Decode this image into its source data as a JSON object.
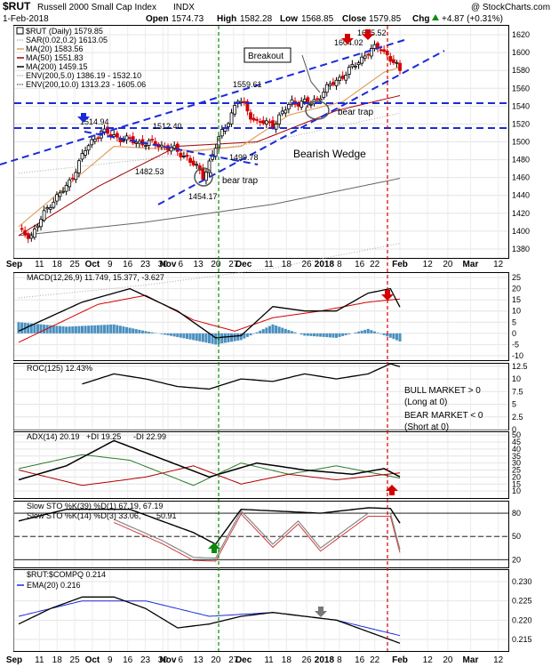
{
  "header": {
    "symbol": "$RUT",
    "name": "Russell 2000 Small Cap Index",
    "exchange": "INDX",
    "source": "@ StockCharts.com",
    "date": "1-Feb-2018",
    "open_label": "Open",
    "open": "1574.73",
    "high_label": "High",
    "high": "1582.28",
    "low_label": "Low",
    "low": "1568.85",
    "close_label": "Close",
    "close": "1579.85",
    "chg_label": "Chg",
    "chg": "+4.87 (+0.31%)",
    "chg_icon": "up-triangle-icon"
  },
  "colors": {
    "up": "#000000",
    "down": "#d40000",
    "ma20": "#e0a060",
    "ma50": "#a00000",
    "ma200": "#000000",
    "trend": "#1a2bd8",
    "vline_green": "#0a8a0a",
    "vline_red": "#d40000",
    "histogram": "#4a90c0",
    "ema": "#1a2bd8",
    "plus_di": "#2a7a2a",
    "minus_di": "#b00000",
    "slow_d": "#d04040"
  },
  "price_panel": {
    "legend": [
      {
        "text": "$RUT (Daily) 1579.85",
        "color": "#000000",
        "icon": "square-outline-icon"
      },
      {
        "text": "SAR(0.02,0.2) 1613.05",
        "color": "#888888",
        "icon": "dotted-line-icon"
      },
      {
        "text": "MA(20) 1583.56",
        "color": "#e0a060",
        "icon": "line-icon"
      },
      {
        "text": "MA(50) 1551.83",
        "color": "#a00000",
        "icon": "line-icon"
      },
      {
        "text": "MA(200) 1459.15",
        "color": "#000000",
        "icon": "line-icon"
      },
      {
        "text": "ENV(200,5.0) 1386.19 - 1532.10",
        "color": "#888888",
        "icon": "dotted-line-icon"
      },
      {
        "text": "ENV(200,10.0) 1313.23 - 1605.06",
        "color": "#000000",
        "icon": "dotted-line-icon"
      }
    ],
    "annotations": {
      "breakout": "Breakout",
      "bear_trap_1": "bear trap",
      "bear_trap_2": "bear trap",
      "bearish_wedge": "Bearish Wedge"
    },
    "price_labels": [
      "1514.94",
      "1512.40",
      "1482.53",
      "1499.78",
      "1454.17",
      "1559.61",
      "1604.02",
      "1615.52"
    ]
  },
  "x_axis": {
    "labels": [
      "Sep",
      "11",
      "18",
      "25",
      "Oct",
      "9",
      "16",
      "23",
      "30",
      "Nov",
      "6",
      "13",
      "20",
      "27",
      "Dec",
      "11",
      "18",
      "26",
      "2018",
      "8",
      "16",
      "22",
      "Feb",
      "12",
      "20",
      "Mar",
      "12"
    ]
  },
  "panels": {
    "macd": {
      "label": "MACD(12,26,9) 11.749, 15.377, -3.627"
    },
    "roc": {
      "label": "ROC(125) 12.43%",
      "bull": [
        "BULL MARKET > 0",
        "(Long at 0)"
      ],
      "bear": [
        "BEAR MARKET < 0",
        "(Short at 0)"
      ]
    },
    "adx": {
      "label_adx": "ADX(14) 20.19",
      "label_pdi": "+DI 19.25",
      "label_mdi": "-DI 22.99"
    },
    "sto": {
      "label1": "Slow STO %K(39) %D(1) 67.19, 67.19",
      "label2_a": "Slow STO %K(14) %D(3) 33.06,",
      "label2_b": "50.91"
    },
    "ratio": {
      "label": "$RUT:$COMPQ 0.214",
      "ema_label": "EMA(20) 0.216"
    }
  },
  "chart_data": [
    {
      "type": "candlestick",
      "title": "$RUT Russell 2000 Small Cap Index INDX (Daily)",
      "y_ticks": [
        1380,
        1400,
        1420,
        1440,
        1460,
        1480,
        1500,
        1520,
        1540,
        1560,
        1580,
        1600,
        1620
      ],
      "ylim": [
        1370,
        1630
      ],
      "x_range": [
        "2017-09-01",
        "2018-03-16"
      ],
      "key_points": [
        {
          "date": "2017-09-01",
          "close": 1401
        },
        {
          "date": "2017-09-08",
          "close": 1395
        },
        {
          "date": "2017-09-15",
          "close": 1430
        },
        {
          "date": "2017-09-22",
          "close": 1450
        },
        {
          "date": "2017-09-29",
          "close": 1490
        },
        {
          "date": "2017-10-05",
          "close": 1512
        },
        {
          "date": "2017-10-12",
          "close": 1505
        },
        {
          "date": "2017-10-19",
          "close": 1500
        },
        {
          "date": "2017-10-26",
          "close": 1498
        },
        {
          "date": "2017-11-02",
          "close": 1493
        },
        {
          "date": "2017-11-09",
          "close": 1482
        },
        {
          "date": "2017-11-15",
          "close": 1461
        },
        {
          "date": "2017-11-21",
          "close": 1502
        },
        {
          "date": "2017-11-29",
          "close": 1548
        },
        {
          "date": "2017-12-06",
          "close": 1522
        },
        {
          "date": "2017-12-13",
          "close": 1520
        },
        {
          "date": "2017-12-20",
          "close": 1545
        },
        {
          "date": "2017-12-28",
          "close": 1543
        },
        {
          "date": "2018-01-05",
          "close": 1565
        },
        {
          "date": "2018-01-12",
          "close": 1580
        },
        {
          "date": "2018-01-19",
          "close": 1600
        },
        {
          "date": "2018-01-24",
          "close": 1607
        },
        {
          "date": "2018-01-29",
          "close": 1590
        },
        {
          "date": "2018-02-01",
          "close": 1579.85
        }
      ],
      "ma20": [
        [
          0,
          1405
        ],
        [
          30,
          1495
        ],
        [
          55,
          1490
        ],
        [
          70,
          1495
        ],
        [
          85,
          1530
        ],
        [
          102,
          1545
        ],
        [
          115,
          1578
        ],
        [
          120,
          1583.56
        ]
      ],
      "ma50": [
        [
          0,
          1395
        ],
        [
          25,
          1450
        ],
        [
          50,
          1495
        ],
        [
          75,
          1500
        ],
        [
          100,
          1535
        ],
        [
          120,
          1551.83
        ]
      ],
      "ma200": [
        [
          0,
          1395
        ],
        [
          40,
          1410
        ],
        [
          80,
          1430
        ],
        [
          120,
          1459.15
        ]
      ]
    },
    {
      "type": "line",
      "title": "MACD(12,26,9) 11.749, 15.377, -3.627",
      "y_ticks": [
        -10,
        -5,
        0,
        5,
        10,
        15,
        20,
        25
      ],
      "ylim": [
        -12,
        27
      ],
      "series": [
        {
          "name": "MACD",
          "values": [
            [
              0,
              1
            ],
            [
              20,
              14
            ],
            [
              35,
              20
            ],
            [
              50,
              10
            ],
            [
              62,
              -2
            ],
            [
              70,
              -1
            ],
            [
              80,
              12
            ],
            [
              90,
              10
            ],
            [
              100,
              10
            ],
            [
              110,
              18
            ],
            [
              117,
              20
            ],
            [
              120,
              11.749
            ]
          ]
        },
        {
          "name": "Signal",
          "values": [
            [
              0,
              -4
            ],
            [
              25,
              13
            ],
            [
              40,
              17
            ],
            [
              55,
              6
            ],
            [
              68,
              1
            ],
            [
              80,
              7
            ],
            [
              95,
              10
            ],
            [
              110,
              14
            ],
            [
              120,
              15.377
            ]
          ]
        }
      ],
      "histogram": [
        [
          0,
          5
        ],
        [
          15,
          3
        ],
        [
          30,
          4
        ],
        [
          40,
          1
        ],
        [
          55,
          -3
        ],
        [
          62,
          -5
        ],
        [
          70,
          -3
        ],
        [
          80,
          4
        ],
        [
          90,
          -1
        ],
        [
          100,
          -2
        ],
        [
          110,
          2
        ],
        [
          120,
          -3.627
        ]
      ]
    },
    {
      "type": "line",
      "title": "ROC(125) 12.43%",
      "y_ticks": [
        0,
        2.5,
        5,
        7.5,
        10,
        12.5
      ],
      "ylim": [
        0,
        13
      ],
      "series": [
        {
          "name": "ROC(125)",
          "values": [
            [
              20,
              9
            ],
            [
              30,
              11
            ],
            [
              40,
              10
            ],
            [
              50,
              8.5
            ],
            [
              60,
              8
            ],
            [
              70,
              10
            ],
            [
              80,
              9.5
            ],
            [
              90,
              11
            ],
            [
              100,
              10
            ],
            [
              110,
              11
            ],
            [
              117,
              13
            ],
            [
              120,
              12.43
            ]
          ]
        }
      ]
    },
    {
      "type": "line",
      "title": "ADX(14) 20.19 +DI 19.25 -DI 22.99",
      "y_ticks": [
        10,
        15,
        20,
        25,
        30,
        35,
        40,
        45,
        50
      ],
      "ylim": [
        5,
        52
      ],
      "series": [
        {
          "name": "ADX(14)",
          "values": [
            [
              0,
              18
            ],
            [
              15,
              28
            ],
            [
              30,
              46
            ],
            [
              45,
              33
            ],
            [
              60,
              20
            ],
            [
              75,
              30
            ],
            [
              90,
              25
            ],
            [
              105,
              22
            ],
            [
              115,
              26
            ],
            [
              120,
              20.19
            ]
          ]
        },
        {
          "name": "+DI",
          "values": [
            [
              0,
              26
            ],
            [
              20,
              36
            ],
            [
              35,
              32
            ],
            [
              55,
              14
            ],
            [
              70,
              30
            ],
            [
              85,
              22
            ],
            [
              100,
              28
            ],
            [
              120,
              19.25
            ]
          ]
        },
        {
          "name": "-DI",
          "values": [
            [
              0,
              25
            ],
            [
              20,
              14
            ],
            [
              40,
              20
            ],
            [
              55,
              28
            ],
            [
              70,
              15
            ],
            [
              85,
              22
            ],
            [
              100,
              18
            ],
            [
              120,
              22.99
            ]
          ]
        }
      ]
    },
    {
      "type": "line",
      "title": "Slow STO",
      "y_ticks": [
        20,
        50,
        80
      ],
      "ylim": [
        10,
        95
      ],
      "series": [
        {
          "name": "Slow STO %K(39) %D(1)",
          "values": [
            [
              0,
              70
            ],
            [
              15,
              85
            ],
            [
              35,
              85
            ],
            [
              55,
              55
            ],
            [
              62,
              40
            ],
            [
              70,
              85
            ],
            [
              85,
              82
            ],
            [
              95,
              80
            ],
            [
              110,
              87
            ],
            [
              117,
              86
            ],
            [
              120,
              67.19
            ]
          ]
        },
        {
          "name": "Slow STO %K(14) %D(3)",
          "values": [
            [
              30,
              72
            ],
            [
              45,
              45
            ],
            [
              55,
              23
            ],
            [
              62,
              22
            ],
            [
              70,
              83
            ],
            [
              80,
              40
            ],
            [
              88,
              70
            ],
            [
              95,
              35
            ],
            [
              110,
              80
            ],
            [
              117,
              80
            ],
            [
              120,
              33.06
            ]
          ]
        }
      ]
    },
    {
      "type": "line",
      "title": "$RUT:$COMPQ 0.214",
      "y_ticks": [
        0.215,
        0.22,
        0.225,
        0.23
      ],
      "ylim": [
        0.212,
        0.233
      ],
      "series": [
        {
          "name": "$RUT:$COMPQ",
          "values": [
            [
              0,
              0.219
            ],
            [
              10,
              0.223
            ],
            [
              20,
              0.226
            ],
            [
              30,
              0.226
            ],
            [
              40,
              0.223
            ],
            [
              50,
              0.218
            ],
            [
              60,
              0.219
            ],
            [
              70,
              0.221
            ],
            [
              80,
              0.222
            ],
            [
              90,
              0.221
            ],
            [
              100,
              0.22
            ],
            [
              110,
              0.217
            ],
            [
              120,
              0.214
            ]
          ]
        },
        {
          "name": "EMA(20)",
          "values": [
            [
              0,
              0.221
            ],
            [
              20,
              0.225
            ],
            [
              40,
              0.225
            ],
            [
              60,
              0.221
            ],
            [
              80,
              0.222
            ],
            [
              100,
              0.22
            ],
            [
              120,
              0.216
            ]
          ]
        }
      ]
    }
  ]
}
